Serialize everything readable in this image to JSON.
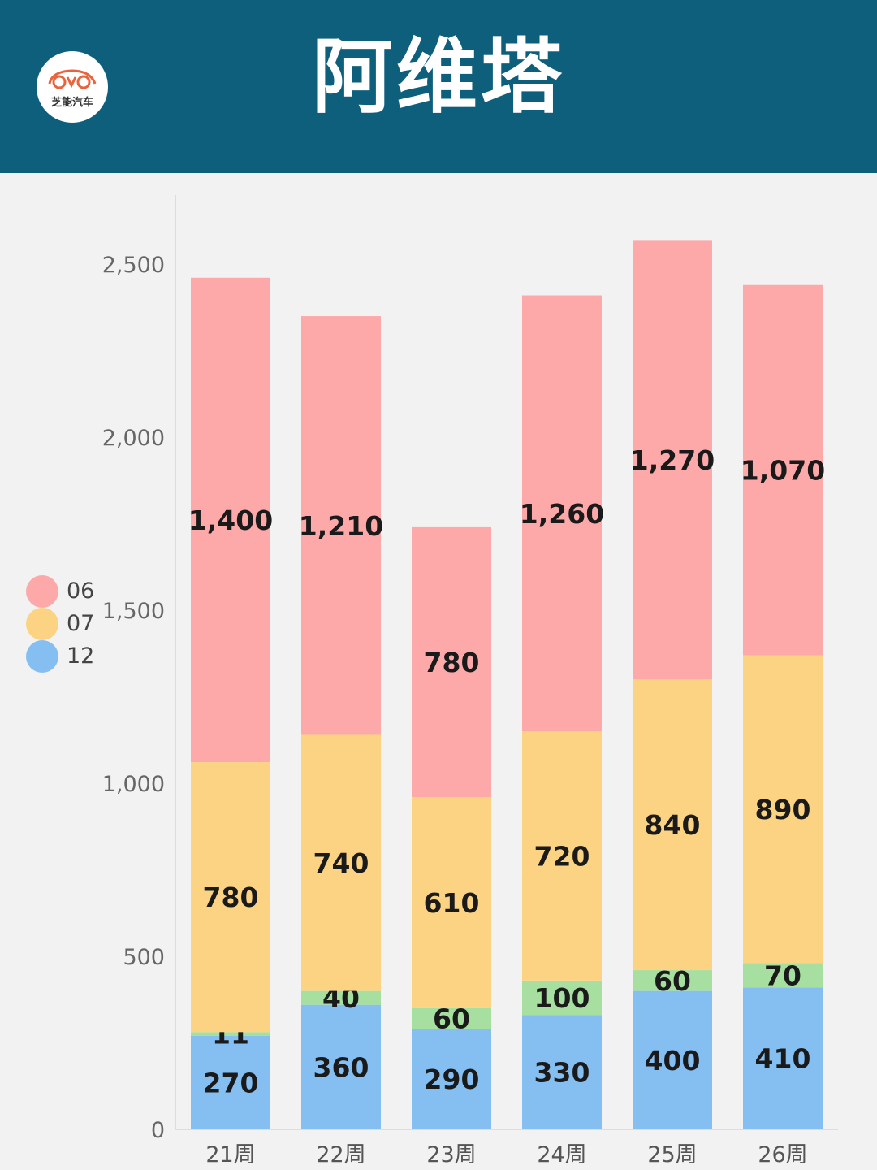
{
  "header": {
    "title": "阿维塔",
    "logo_text": "芝能汽车"
  },
  "colors": {
    "header_bg": "#0e5f7c",
    "06": "#fda9a9",
    "07": "#fcd383",
    "12": "#85bff2",
    "other": "#a6df9f"
  },
  "legend": [
    {
      "label": "06",
      "color": "#fda9a9"
    },
    {
      "label": "07",
      "color": "#fcd383"
    },
    {
      "label": "12",
      "color": "#85bff2"
    }
  ],
  "chart_data": {
    "type": "bar",
    "stacked": true,
    "categories": [
      "21周",
      "22周",
      "23周",
      "24周",
      "25周",
      "26周"
    ],
    "series": [
      {
        "name": "12",
        "color": "#85bff2",
        "values": [
          270,
          360,
          290,
          330,
          400,
          410
        ],
        "labels": [
          "270",
          "360",
          "290",
          "330",
          "400",
          "410"
        ]
      },
      {
        "color": "#a6df9f",
        "values": [
          11,
          40,
          60,
          100,
          60,
          70
        ],
        "labels": [
          "11",
          "40",
          "60",
          "100",
          "60",
          "70"
        ]
      },
      {
        "name": "07",
        "color": "#fcd383",
        "values": [
          780,
          740,
          610,
          720,
          840,
          890
        ],
        "labels": [
          "780",
          "740",
          "610",
          "720",
          "840",
          "890"
        ]
      },
      {
        "name": "06",
        "color": "#fda9a9",
        "values": [
          1400,
          1210,
          780,
          1260,
          1270,
          1070
        ],
        "labels": [
          "1,400",
          "1,210",
          "780",
          "1,260",
          "1,270",
          "1,070"
        ]
      }
    ],
    "ylim": [
      0,
      2700
    ],
    "yticks": [
      0,
      500,
      1000,
      1500,
      2000,
      2500
    ],
    "ytick_labels": [
      "0",
      "500",
      "1,000",
      "1,500",
      "2,000",
      "2,500"
    ],
    "legend_position": "left",
    "grid": false
  }
}
